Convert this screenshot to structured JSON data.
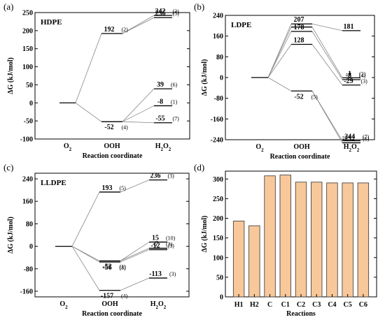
{
  "chart_data": [
    {
      "type": "energy-profile",
      "panel_label": "(a)",
      "title": "HDPE",
      "xlabel": "Reaction coordinate",
      "ylabel": "ΔG (kJ/mol)",
      "categories": [
        "O2",
        "OOH",
        "H2O2"
      ],
      "ylim": [
        -100,
        250
      ],
      "yticks": [
        -100,
        -50,
        0,
        50,
        100,
        150,
        200,
        250
      ],
      "levels": [
        {
          "stage": 0,
          "value": 0,
          "label": "",
          "count": ""
        },
        {
          "stage": 1,
          "value": 192,
          "label": "192",
          "count": "(2)"
        },
        {
          "stage": 1,
          "value": -52,
          "label": "-52",
          "count": "(4)"
        },
        {
          "stage": 2,
          "value": 242,
          "label": "242",
          "count": "(3)"
        },
        {
          "stage": 2,
          "value": 236,
          "label": "236",
          "count": "(5)"
        },
        {
          "stage": 2,
          "value": 39,
          "label": "39",
          "count": "(6)"
        },
        {
          "stage": 2,
          "value": -8,
          "label": "-8",
          "count": "(1)"
        },
        {
          "stage": 2,
          "value": -55,
          "label": "-55",
          "count": "(7)"
        }
      ],
      "links": [
        [
          0,
          1
        ],
        [
          0,
          2
        ],
        [
          1,
          3
        ],
        [
          1,
          4
        ],
        [
          2,
          5
        ],
        [
          2,
          6
        ],
        [
          2,
          7
        ]
      ]
    },
    {
      "type": "energy-profile",
      "panel_label": "(b)",
      "title": "LDPE",
      "xlabel": "Reaction coordinate",
      "ylabel": "ΔG (kJ/mol)",
      "categories": [
        "O2",
        "OOH",
        "H2O2"
      ],
      "ylim": [
        -240,
        240
      ],
      "yticks": [
        -240,
        -160,
        -80,
        0,
        80,
        160,
        240
      ],
      "levels": [
        {
          "stage": 0,
          "value": 0,
          "label": "",
          "count": ""
        },
        {
          "stage": 1,
          "value": 207,
          "label": "207",
          "count": ""
        },
        {
          "stage": 1,
          "value": 195,
          "label": "",
          "count": ""
        },
        {
          "stage": 1,
          "value": 178,
          "label": "178",
          "count": ""
        },
        {
          "stage": 1,
          "value": 128,
          "label": "128",
          "count": ""
        },
        {
          "stage": 1,
          "value": -52,
          "label": "-52",
          "count": "(5)"
        },
        {
          "stage": 2,
          "value": 181,
          "label": "181",
          "count": ""
        },
        {
          "stage": 2,
          "value": -1,
          "label": "-1",
          "count": "(2)"
        },
        {
          "stage": 2,
          "value": -8,
          "label": "-8",
          "count": "(4)"
        },
        {
          "stage": 2,
          "value": -29,
          "label": "-29",
          "count": "(3)"
        },
        {
          "stage": 2,
          "value": -244,
          "label": "-244",
          "count": "(7)"
        },
        {
          "stage": 2,
          "value": -252,
          "label": "-252",
          "count": "(6)"
        }
      ],
      "links": [
        [
          0,
          1
        ],
        [
          0,
          2
        ],
        [
          0,
          3
        ],
        [
          0,
          4
        ],
        [
          0,
          5
        ],
        [
          1,
          6
        ],
        [
          2,
          7
        ],
        [
          3,
          8
        ],
        [
          4,
          9
        ],
        [
          5,
          10
        ],
        [
          5,
          11
        ]
      ]
    },
    {
      "type": "energy-profile",
      "panel_label": "(c)",
      "title": "LLDPE",
      "xlabel": "Reaction coordinate",
      "ylabel": "ΔG (kJ/mol)",
      "categories": [
        "O2",
        "OOH",
        "H2O2"
      ],
      "ylim": [
        -180,
        260
      ],
      "yticks": [
        -160,
        -80,
        0,
        80,
        160,
        240
      ],
      "levels": [
        {
          "stage": 0,
          "value": 0,
          "label": "",
          "count": ""
        },
        {
          "stage": 1,
          "value": 193,
          "label": "193",
          "count": "(5)"
        },
        {
          "stage": 1,
          "value": -52,
          "label": "-52",
          "count": "(1)"
        },
        {
          "stage": 1,
          "value": -56,
          "label": "-56",
          "count": "(8)"
        },
        {
          "stage": 1,
          "value": -157,
          "label": "-157",
          "count": "(4)"
        },
        {
          "stage": 2,
          "value": 236,
          "label": "236",
          "count": "(3)"
        },
        {
          "stage": 2,
          "value": 15,
          "label": "15",
          "count": "(10)"
        },
        {
          "stage": 2,
          "value": -7,
          "label": "-7",
          "count": "(3)"
        },
        {
          "stage": 2,
          "value": -12,
          "label": "-12",
          "count": "(3)"
        },
        {
          "stage": 2,
          "value": -113,
          "label": "-113",
          "count": "(3)"
        }
      ],
      "links": [
        [
          0,
          1
        ],
        [
          0,
          2
        ],
        [
          0,
          3
        ],
        [
          0,
          4
        ],
        [
          1,
          5
        ],
        [
          2,
          6
        ],
        [
          2,
          7
        ],
        [
          3,
          8
        ],
        [
          4,
          9
        ]
      ]
    },
    {
      "type": "bar",
      "panel_label": "(d)",
      "title": "",
      "xlabel": "Reactions",
      "ylabel": "ΔG (kJ/mol)",
      "categories": [
        "H1",
        "H2",
        "C",
        "C1",
        "C2",
        "C3",
        "C4",
        "C5",
        "C6"
      ],
      "values": [
        193,
        181,
        308,
        310,
        292,
        292,
        290,
        290,
        290
      ],
      "ylim": [
        0,
        320
      ],
      "yticks": [
        0,
        50,
        100,
        150,
        200,
        250,
        300
      ],
      "bar_color": "#f8c89a",
      "bar_edge": "#333333"
    }
  ]
}
